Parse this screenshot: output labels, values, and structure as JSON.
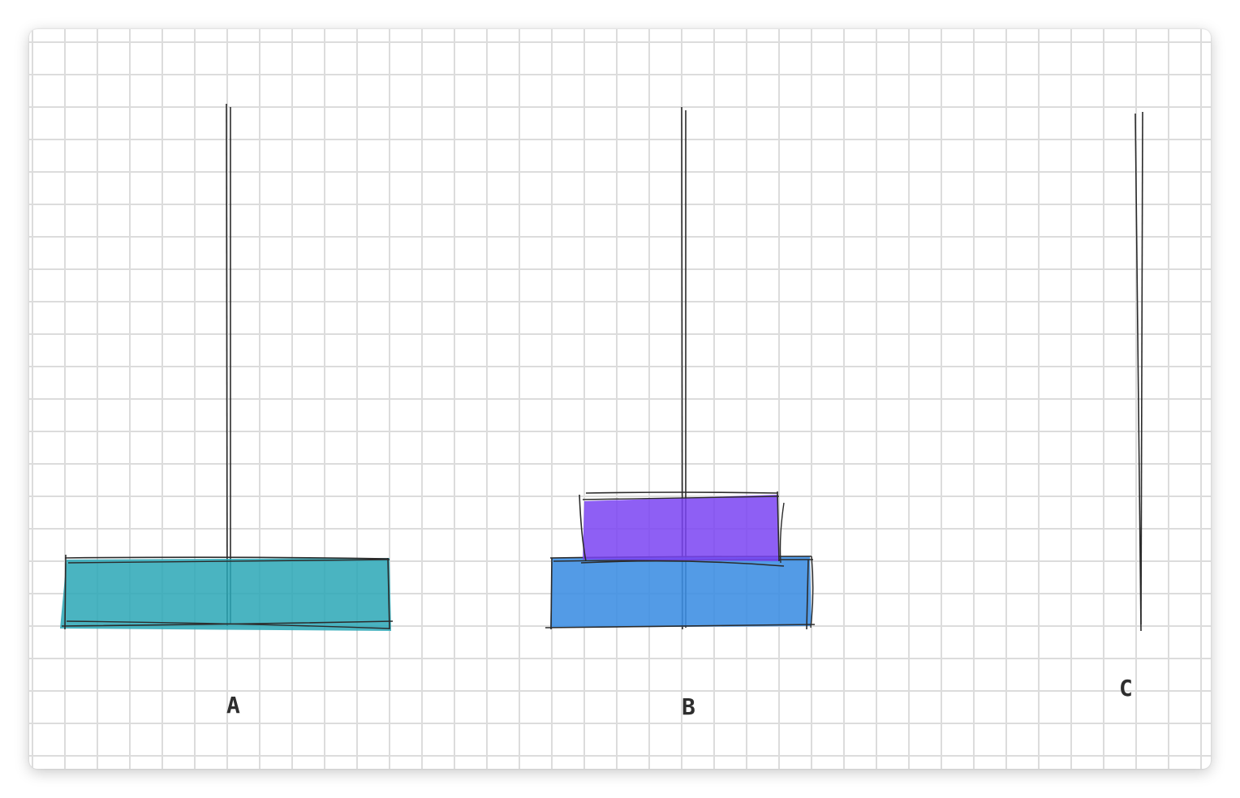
{
  "diagram": {
    "pegs": [
      {
        "label": "A"
      },
      {
        "label": "B"
      },
      {
        "label": "C"
      }
    ],
    "disks": [
      {
        "peg": "A",
        "color": "#2aa7b6"
      },
      {
        "peg": "B",
        "color": "#3b8de3"
      },
      {
        "peg": "B",
        "color": "#7a43f2"
      }
    ],
    "colors": {
      "stroke": "#2b2b2b",
      "grid": "#dcdcdc",
      "label": "#2e2e2e"
    }
  }
}
